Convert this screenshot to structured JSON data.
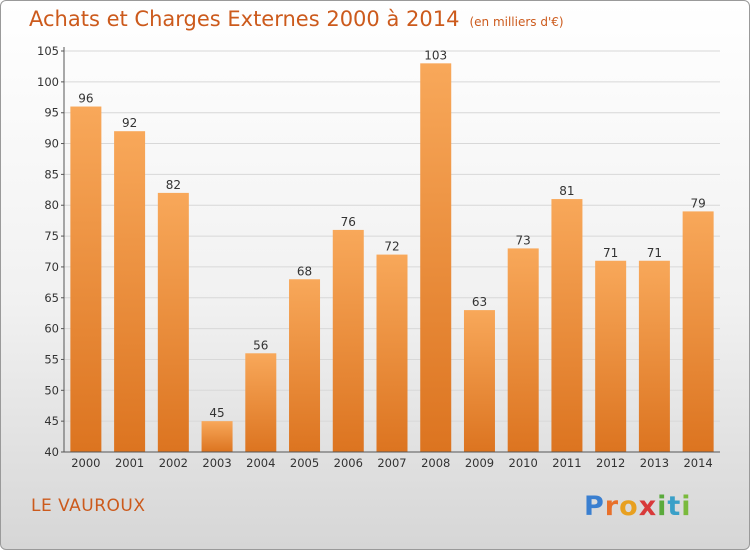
{
  "title": "Achats et Charges Externes 2000 à 2014",
  "unit": "(en milliers d'€)",
  "place": "LE VAUROUX",
  "logo": {
    "text": "Proxiti",
    "letters": [
      {
        "char": "P",
        "color": "#3a7fd0"
      },
      {
        "char": "r",
        "color": "#e8702a"
      },
      {
        "char": "o",
        "color": "#e8a020"
      },
      {
        "char": "x",
        "color": "#d83a3a"
      },
      {
        "char": "i",
        "color": "#5aaa3c"
      },
      {
        "char": "t",
        "color": "#3aa0c8"
      },
      {
        "char": "i",
        "color": "#7aba3c"
      }
    ]
  },
  "colors": {
    "bar_top": "#f8a85a",
    "bar_bottom": "#dc7420",
    "title": "#cc5a1c",
    "grid": "#d8d8d8"
  },
  "chart_data": {
    "type": "bar",
    "title": "Achats et Charges Externes 2000 à 2014",
    "xlabel": "",
    "ylabel": "",
    "categories": [
      "2000",
      "2001",
      "2002",
      "2003",
      "2004",
      "2005",
      "2006",
      "2007",
      "2008",
      "2009",
      "2010",
      "2011",
      "2012",
      "2013",
      "2014"
    ],
    "values": [
      96,
      92,
      82,
      45,
      56,
      68,
      76,
      72,
      103,
      63,
      73,
      81,
      71,
      71,
      79
    ],
    "ylim": [
      40,
      105
    ],
    "yticks": [
      40,
      45,
      50,
      55,
      60,
      65,
      70,
      75,
      80,
      85,
      90,
      95,
      100,
      105
    ],
    "grid": true
  }
}
